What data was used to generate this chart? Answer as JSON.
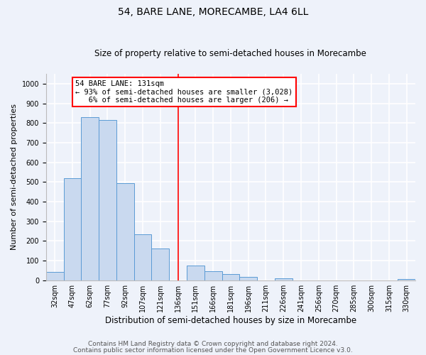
{
  "title": "54, BARE LANE, MORECAMBE, LA4 6LL",
  "subtitle": "Size of property relative to semi-detached houses in Morecambe",
  "xlabel": "Distribution of semi-detached houses by size in Morecambe",
  "ylabel": "Number of semi-detached properties",
  "bar_labels": [
    "32sqm",
    "47sqm",
    "62sqm",
    "77sqm",
    "92sqm",
    "107sqm",
    "121sqm",
    "136sqm",
    "151sqm",
    "166sqm",
    "181sqm",
    "196sqm",
    "211sqm",
    "226sqm",
    "241sqm",
    "256sqm",
    "270sqm",
    "285sqm",
    "300sqm",
    "315sqm",
    "330sqm"
  ],
  "bar_values": [
    43,
    520,
    828,
    815,
    493,
    235,
    163,
    0,
    75,
    45,
    30,
    18,
    0,
    10,
    0,
    0,
    0,
    0,
    0,
    0,
    5
  ],
  "bar_color": "#c9d9ef",
  "bar_edge_color": "#5b9bd5",
  "vline_color": "red",
  "annotation_text": "54 BARE LANE: 131sqm\n← 93% of semi-detached houses are smaller (3,028)\n   6% of semi-detached houses are larger (206) →",
  "annotation_box_color": "white",
  "annotation_box_edge_color": "red",
  "ylim": [
    0,
    1050
  ],
  "background_color": "#eef2fa",
  "plot_background": "#eef2fa",
  "grid_color": "white",
  "footer_line1": "Contains HM Land Registry data © Crown copyright and database right 2024.",
  "footer_line2": "Contains public sector information licensed under the Open Government Licence v3.0.",
  "title_fontsize": 10,
  "subtitle_fontsize": 8.5,
  "tick_fontsize": 7,
  "ylabel_fontsize": 8,
  "xlabel_fontsize": 8.5,
  "footer_fontsize": 6.5,
  "annotation_fontsize": 7.5
}
